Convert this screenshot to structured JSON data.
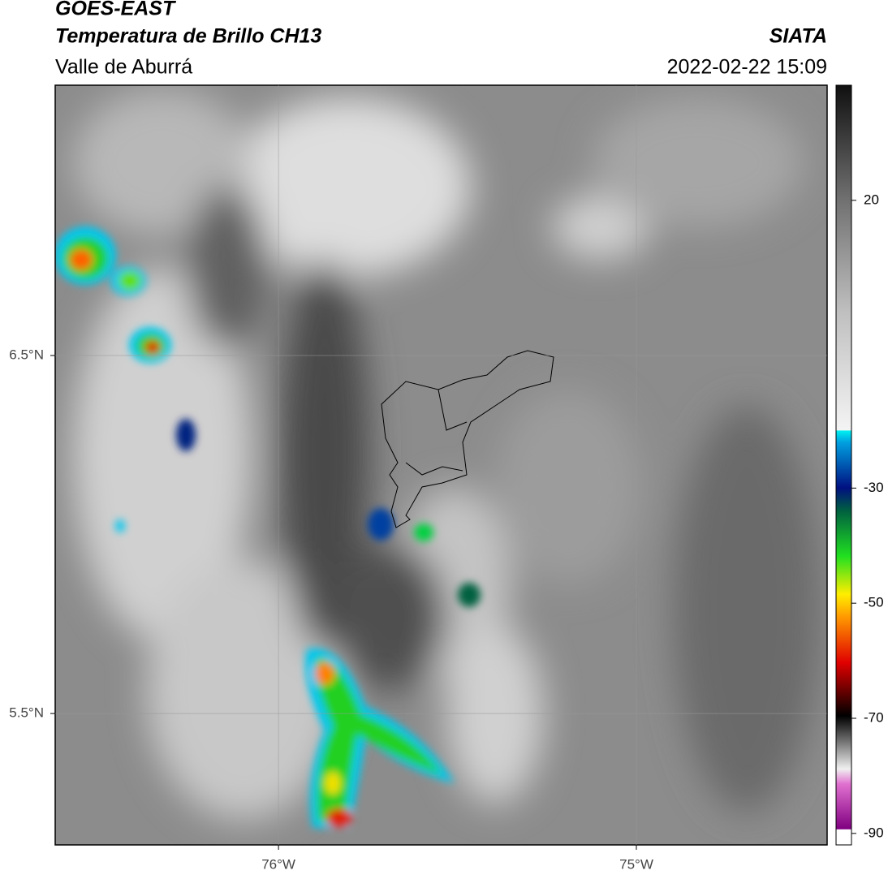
{
  "header": {
    "title": "GOES-EAST",
    "subtitle": "Temperatura de Brillo CH13",
    "region": "Valle de Aburrá",
    "source": "SIATA",
    "datetime": "2022-02-22 15:09"
  },
  "map": {
    "xlim": [
      -76.624,
      -74.467
    ],
    "ylim": [
      5.133,
      7.255
    ],
    "xticks": [
      {
        "value": -76,
        "label": "76°W"
      },
      {
        "value": -75,
        "label": "75°W"
      }
    ],
    "yticks": [
      {
        "value": 6.5,
        "label": "6.5°N"
      },
      {
        "value": 5.5,
        "label": "5.5°N"
      }
    ],
    "grid": true
  },
  "colorbar": {
    "lim": [
      -92,
      40
    ],
    "ticks": [
      20,
      -30,
      -50,
      -70,
      -90
    ]
  }
}
